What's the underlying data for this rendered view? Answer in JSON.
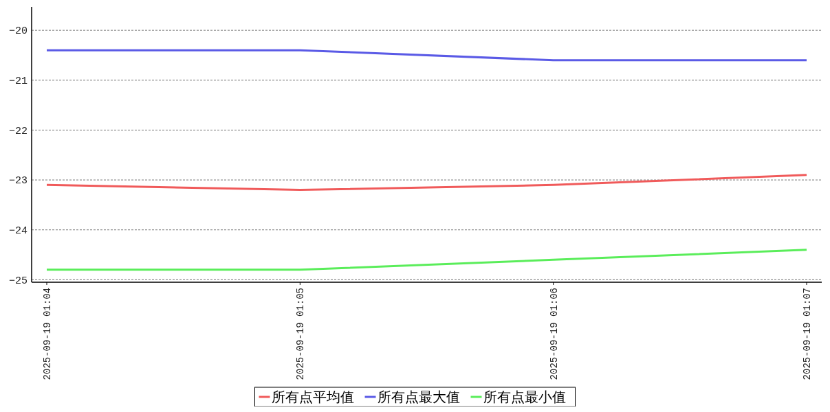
{
  "chart_data": {
    "type": "line",
    "categories": [
      "2025-09-19 01:04",
      "2025-09-19 01:05",
      "2025-09-19 01:06",
      "2025-09-19 01:07"
    ],
    "series": [
      {
        "name": "所有点平均值",
        "color": "#f05a5a",
        "values": [
          -23.1,
          -23.2,
          -23.1,
          -22.9
        ]
      },
      {
        "name": "所有点最大值",
        "color": "#5a5ae6",
        "values": [
          -20.4,
          -20.4,
          -20.6,
          -20.6
        ]
      },
      {
        "name": "所有点最小值",
        "color": "#5aed5a",
        "values": [
          -24.8,
          -24.8,
          -24.6,
          -24.4
        ]
      }
    ],
    "ylim": [
      -25.05,
      -19.53
    ],
    "yticks": [
      -25,
      -24,
      -23,
      -22,
      -21,
      -20
    ],
    "grid": "y",
    "legend": "bottom",
    "marker": "none",
    "line_style": "solid"
  }
}
